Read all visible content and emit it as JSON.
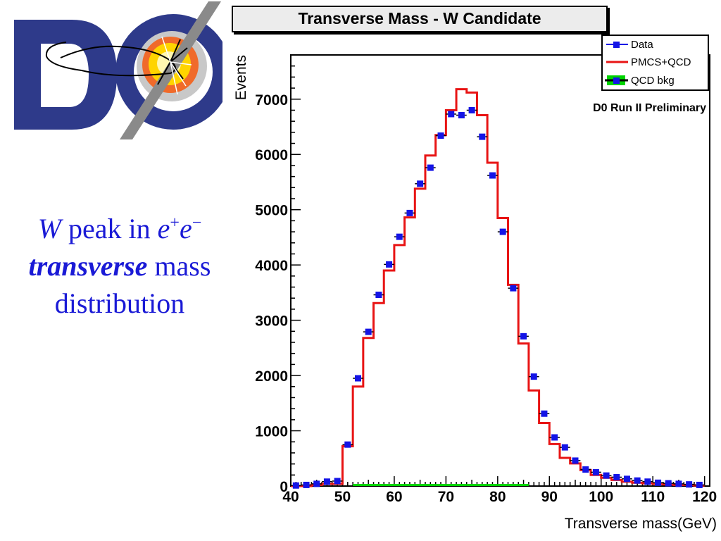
{
  "caption": {
    "line1_w": "W",
    "line1_mid": " peak in ",
    "line1_e": "e",
    "line1_plus": "+",
    "line1_e2": "e",
    "line1_minus": "−",
    "line2_bold": "transverse",
    "line2_rest": " mass",
    "line3": "distribution"
  },
  "colors": {
    "data": "#1414e6",
    "pmcs": "#e81414",
    "qcd": "#00d400",
    "caption": "#1a1ad6"
  },
  "chart_data": {
    "type": "bar",
    "title": "Transverse Mass - W Candidate",
    "xlabel": "Transverse mass(GeV)",
    "ylabel": "Events",
    "annotation": "D0 Run II Preliminary",
    "xlim": [
      40,
      121
    ],
    "ylim": [
      0,
      7800
    ],
    "xticks": [
      40,
      50,
      60,
      70,
      80,
      90,
      100,
      110,
      120
    ],
    "yticks": [
      0,
      1000,
      2000,
      3000,
      4000,
      5000,
      6000,
      7000
    ],
    "bin_width": 2,
    "legend": [
      "Data",
      "PMCS+QCD",
      "QCD bkg"
    ],
    "series": [
      {
        "name": "Data",
        "style": "points",
        "x": [
          41,
          43,
          45,
          47,
          49,
          51,
          53,
          55,
          57,
          59,
          61,
          63,
          65,
          67,
          69,
          71,
          73,
          75,
          77,
          79,
          81,
          83,
          85,
          87,
          89,
          91,
          93,
          95,
          97,
          99,
          101,
          103,
          105,
          107,
          109,
          111,
          113,
          115,
          117,
          119
        ],
        "values": [
          10,
          20,
          40,
          80,
          90,
          750,
          1950,
          2790,
          3460,
          4010,
          4510,
          4940,
          5470,
          5760,
          6340,
          6730,
          6710,
          6800,
          6320,
          5620,
          4600,
          3580,
          2710,
          1980,
          1310,
          880,
          700,
          460,
          300,
          250,
          190,
          160,
          130,
          100,
          80,
          60,
          50,
          40,
          30,
          20
        ]
      },
      {
        "name": "PMCS+QCD",
        "style": "step",
        "x": [
          41,
          43,
          45,
          47,
          49,
          51,
          53,
          55,
          57,
          59,
          61,
          63,
          65,
          67,
          69,
          71,
          73,
          75,
          77,
          79,
          81,
          83,
          85,
          87,
          89,
          91,
          93,
          95,
          97,
          99,
          101,
          103,
          105,
          107,
          109,
          111,
          113,
          115,
          117,
          119
        ],
        "values": [
          0,
          0,
          20,
          40,
          40,
          720,
          1800,
          2680,
          3310,
          3900,
          4360,
          4860,
          5380,
          5980,
          6350,
          6800,
          7180,
          7120,
          6710,
          5850,
          4850,
          3640,
          2580,
          1730,
          1140,
          760,
          510,
          410,
          290,
          200,
          150,
          110,
          80,
          60,
          50,
          40,
          30,
          20,
          20,
          10
        ]
      },
      {
        "name": "QCD bkg",
        "style": "step",
        "x": [
          41,
          43,
          45,
          47,
          49,
          51,
          53,
          55,
          57,
          59,
          61,
          63,
          65,
          67,
          69,
          71,
          73,
          75,
          77,
          79,
          81,
          83,
          85,
          87,
          89,
          91,
          93,
          95,
          97,
          99,
          101,
          103,
          105,
          107,
          109,
          111,
          113,
          115,
          117,
          119
        ],
        "values": [
          0,
          0,
          0,
          0,
          0,
          0,
          10,
          20,
          20,
          20,
          20,
          20,
          20,
          20,
          20,
          20,
          20,
          20,
          20,
          20,
          20,
          20,
          20,
          0,
          0,
          0,
          0,
          0,
          0,
          0,
          0,
          0,
          0,
          0,
          0,
          0,
          0,
          0,
          0,
          0
        ]
      }
    ]
  }
}
